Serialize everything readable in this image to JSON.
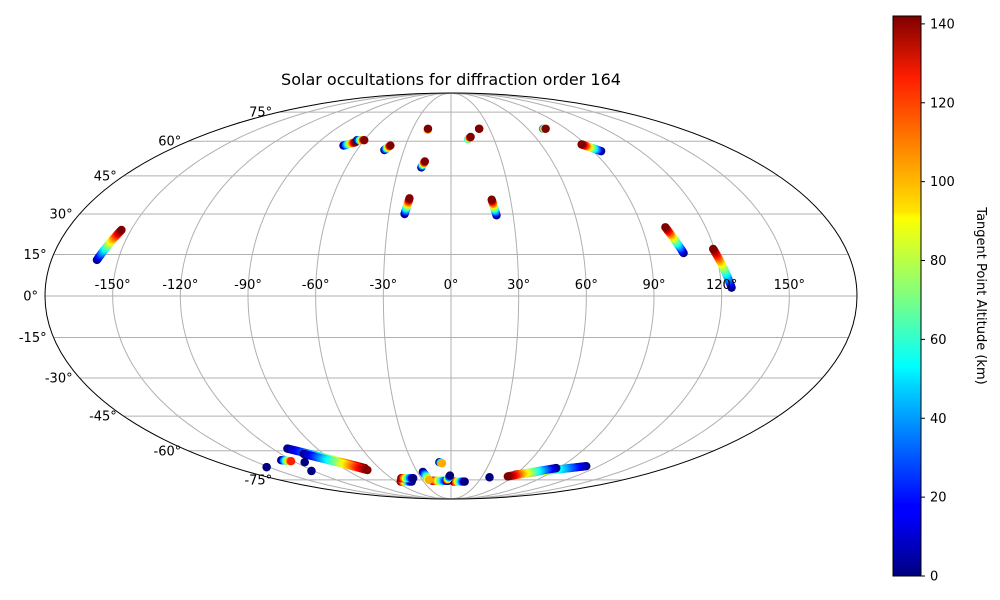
{
  "chart_data": {
    "type": "scatter",
    "projection": "mollweide",
    "title": "Solar occultations for diffraction order 164",
    "x_tick_labels": [
      "-150°",
      "-120°",
      "-90°",
      "-60°",
      "-30°",
      "0°",
      "30°",
      "60°",
      "90°",
      "120°",
      "150°"
    ],
    "x_tick_values": [
      -150,
      -120,
      -90,
      -60,
      -30,
      0,
      30,
      60,
      90,
      120,
      150
    ],
    "y_tick_labels": [
      "-75°",
      "-60°",
      "-45°",
      "-30°",
      "-15°",
      "0°",
      "15°",
      "30°",
      "45°",
      "60°",
      "75°"
    ],
    "y_tick_values": [
      -75,
      -60,
      -45,
      -30,
      -15,
      0,
      15,
      30,
      45,
      60,
      75
    ],
    "grid": true,
    "colorbar": {
      "label": "Tangent Point Altitude (km)",
      "min": 0,
      "max": 142,
      "tick_labels": [
        "0",
        "20",
        "40",
        "60",
        "80",
        "100",
        "120",
        "140"
      ],
      "tick_values": [
        0,
        20,
        40,
        60,
        80,
        100,
        120,
        140
      ],
      "colormap": "jet"
    },
    "tracks": [
      {
        "lon_start": -159.5,
        "lat_start": 13,
        "lon_end": -154.5,
        "lat_end": 24,
        "alt_start": 0,
        "alt_end": 142
      },
      {
        "lon_start": 105.5,
        "lat_start": 15.5,
        "lon_end": 101,
        "lat_end": 25,
        "alt_start": 0,
        "alt_end": 142
      },
      {
        "lon_start": 124.5,
        "lat_start": 3,
        "lon_end": 119.5,
        "lat_end": 17,
        "alt_start": 0,
        "alt_end": 142
      },
      {
        "lon_start": -22.5,
        "lat_start": 30,
        "lon_end": -21,
        "lat_end": 36,
        "alt_start": 0,
        "alt_end": 142
      },
      {
        "lon_start": 22,
        "lat_start": 29.5,
        "lon_end": 20.5,
        "lat_end": 35.5,
        "alt_start": 0,
        "alt_end": 142
      },
      {
        "lon_start": -17,
        "lat_start": 48.5,
        "lon_end": -15.5,
        "lat_end": 51,
        "alt_start": 0,
        "alt_end": 142
      },
      {
        "lon_start": -42.5,
        "lat_start": 56,
        "lon_end": -40,
        "lat_end": 58,
        "alt_start": 0,
        "alt_end": 142
      },
      {
        "lon_start": 95,
        "lat_start": 55.5,
        "lon_end": 87,
        "lat_end": 58.5,
        "alt_start": 0,
        "alt_end": 142
      },
      {
        "lon_start": -71,
        "lat_start": 58,
        "lon_end": -65,
        "lat_end": 59.5,
        "alt_start": 0,
        "alt_end": 142
      },
      {
        "lon_start": -65,
        "lat_start": 60.5,
        "lon_end": -60,
        "lat_end": 60.5,
        "alt_start": 0,
        "alt_end": 142
      },
      {
        "lon_start": 72,
        "lat_start": 66,
        "lon_end": 74,
        "lat_end": 66,
        "alt_start": 40,
        "alt_end": 142
      },
      {
        "lon_start": -18,
        "lat_start": 65.5,
        "lon_end": -18,
        "lat_end": 66,
        "alt_start": 100,
        "alt_end": 142
      },
      {
        "lon_start": 12,
        "lat_start": 61,
        "lon_end": 14,
        "lat_end": 62,
        "alt_start": 60,
        "alt_end": 142
      },
      {
        "lon_start": 22,
        "lat_start": 66,
        "lon_end": 22,
        "lat_end": 66,
        "alt_start": 142,
        "alt_end": 142
      },
      {
        "lon_start": -110,
        "lat_start": -59,
        "lon_end": -72,
        "lat_end": -68.5,
        "alt_start": 0,
        "alt_end": 142
      },
      {
        "lon_start": -104,
        "lat_start": -61.5,
        "lon_end": -72,
        "lat_end": -69.5,
        "alt_start": 0,
        "alt_end": 142
      },
      {
        "lon_start": 110,
        "lat_start": -67.5,
        "lon_end": 60,
        "lat_end": -72,
        "alt_start": 0,
        "alt_end": 142
      },
      {
        "lon_start": 88,
        "lat_start": -68.5,
        "lon_end": 55,
        "lat_end": -73,
        "alt_start": 0,
        "alt_end": 142
      },
      {
        "lon_start": 3,
        "lat_start": -76,
        "lon_end": 15,
        "lat_end": -76,
        "alt_start": 142,
        "alt_end": 0
      },
      {
        "lon_start": -55,
        "lat_start": -76,
        "lon_end": -43,
        "lat_end": -76,
        "alt_start": 142,
        "alt_end": 0
      },
      {
        "lon_start": -50,
        "lat_start": -74,
        "lon_end": -38,
        "lat_end": -74,
        "alt_start": 142,
        "alt_end": 0
      },
      {
        "lon_start": -20,
        "lat_start": -75.5,
        "lon_end": -3,
        "lat_end": -75.5,
        "alt_start": 142,
        "alt_end": 0
      },
      {
        "lon_start": -25,
        "lat_start": -70.5,
        "lon_end": -23,
        "lat_end": -75,
        "alt_start": 0,
        "alt_end": 100
      },
      {
        "lon_start": -4,
        "lat_start": -75,
        "lon_end": -1,
        "lat_end": -72.5,
        "alt_start": 120,
        "alt_end": 0
      },
      {
        "lon_start": -9,
        "lat_start": -65.5,
        "lon_end": -7,
        "lat_end": -66,
        "alt_start": 0,
        "alt_end": 100
      },
      {
        "lon_start": -113,
        "lat_start": -65.5,
        "lon_end": -113,
        "lat_end": -65.5,
        "alt_start": 0,
        "alt_end": 0
      },
      {
        "lon_start": -152,
        "lat_start": -68,
        "lon_end": -152,
        "lat_end": -68,
        "alt_start": 0,
        "alt_end": 0
      },
      {
        "lon_start": -128,
        "lat_start": -64.5,
        "lon_end": -122,
        "lat_end": -65,
        "alt_start": 0,
        "alt_end": 120
      },
      {
        "lon_start": -122,
        "lat_start": -70,
        "lon_end": -122,
        "lat_end": -70,
        "alt_start": 0,
        "alt_end": 0
      },
      {
        "lon_start": 38,
        "lat_start": -73.5,
        "lon_end": 38,
        "lat_end": -73.5,
        "alt_start": 0,
        "alt_end": 0
      }
    ]
  }
}
